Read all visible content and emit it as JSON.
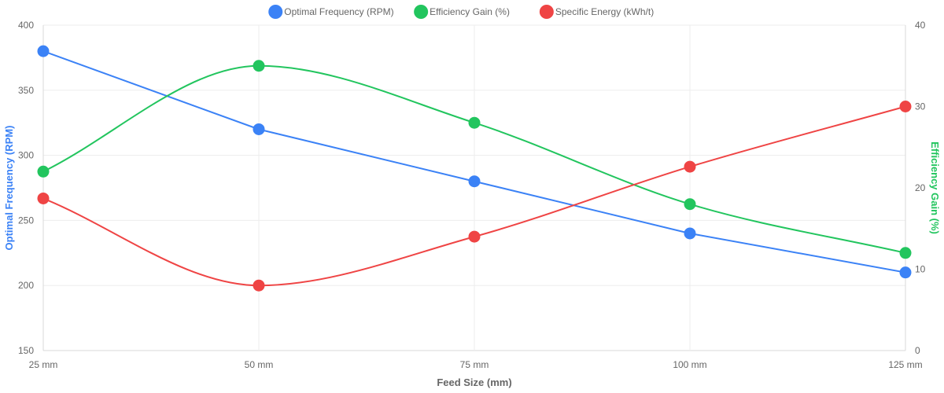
{
  "chart_data": {
    "type": "line",
    "categories": [
      "25 mm",
      "50 mm",
      "75 mm",
      "100 mm",
      "125 mm"
    ],
    "xlabel": "Feed Size (mm)",
    "ylabel_left": "Optimal Frequency (RPM)",
    "ylabel_right": "Efficiency Gain (%)",
    "y_left": {
      "min": 150,
      "max": 400,
      "ticks": [
        150,
        200,
        250,
        300,
        350,
        400
      ]
    },
    "y_right": {
      "min": 0,
      "max": 40,
      "ticks": [
        0,
        10,
        20,
        30,
        40
      ]
    },
    "grid": true,
    "legend_position": "top-center",
    "series": [
      {
        "name": "Optimal Frequency (RPM)",
        "axis": "left",
        "color": "#3b82f6",
        "values": [
          380,
          320,
          280,
          240,
          210
        ]
      },
      {
        "name": "Efficiency Gain (%)",
        "axis": "right",
        "color": "#22c55e",
        "values": [
          22,
          35,
          28,
          18,
          12
        ]
      },
      {
        "name": "Specific Energy (kWh/t)",
        "axis": "right",
        "color": "#ef4444",
        "values": [
          18.7,
          8,
          14,
          22.6,
          30
        ]
      }
    ]
  }
}
